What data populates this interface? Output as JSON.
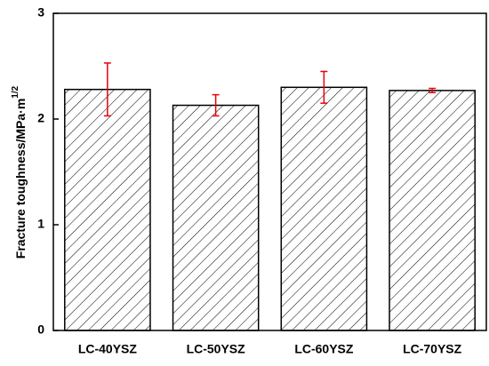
{
  "chart_data": {
    "type": "bar",
    "y_label": "Fracture toughness/MPa·m",
    "y_label_superscript": "1/2",
    "categories": [
      "LC-40YSZ",
      "LC-50YSZ",
      "LC-60YSZ",
      "LC-70YSZ"
    ],
    "values": [
      2.28,
      2.13,
      2.3,
      2.27
    ],
    "errors": [
      0.25,
      0.1,
      0.15,
      0.02
    ],
    "color": "#ffffff",
    "error_color": "#e8000b",
    "hatch": true,
    "ylim": [
      0,
      3
    ],
    "yticks": [
      0,
      1,
      2,
      3
    ],
    "grid": false
  }
}
